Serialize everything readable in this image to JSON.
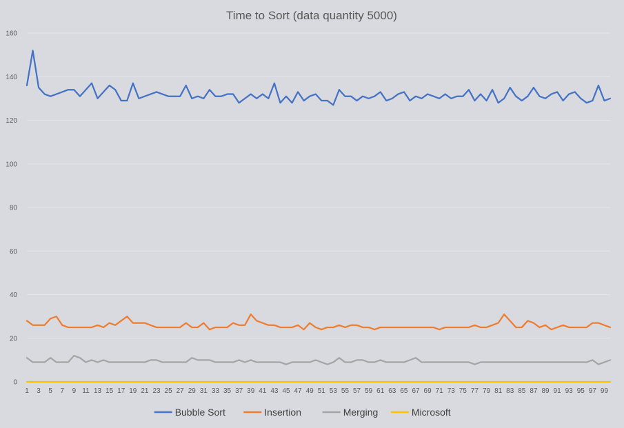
{
  "chart_data": {
    "type": "line",
    "title": "Time to Sort (data quantity 5000)",
    "xlabel": "",
    "ylabel": "",
    "ylim": [
      0,
      160
    ],
    "yticks": [
      0,
      20,
      40,
      60,
      80,
      100,
      120,
      140,
      160
    ],
    "x_tick_labels": [
      "1",
      "3",
      "5",
      "7",
      "9",
      "11",
      "13",
      "15",
      "17",
      "19",
      "21",
      "23",
      "25",
      "27",
      "29",
      "31",
      "33",
      "35",
      "37",
      "39",
      "41",
      "43",
      "45",
      "47",
      "49",
      "51",
      "53",
      "55",
      "57",
      "59",
      "61",
      "63",
      "65",
      "67",
      "69",
      "71",
      "73",
      "75",
      "77",
      "79",
      "81",
      "83",
      "85",
      "87",
      "89",
      "91",
      "93",
      "95",
      "97",
      "99"
    ],
    "x": [
      1,
      2,
      3,
      4,
      5,
      6,
      7,
      8,
      9,
      10,
      11,
      12,
      13,
      14,
      15,
      16,
      17,
      18,
      19,
      20,
      21,
      22,
      23,
      24,
      25,
      26,
      27,
      28,
      29,
      30,
      31,
      32,
      33,
      34,
      35,
      36,
      37,
      38,
      39,
      40,
      41,
      42,
      43,
      44,
      45,
      46,
      47,
      48,
      49,
      50,
      51,
      52,
      53,
      54,
      55,
      56,
      57,
      58,
      59,
      60,
      61,
      62,
      63,
      64,
      65,
      66,
      67,
      68,
      69,
      70,
      71,
      72,
      73,
      74,
      75,
      76,
      77,
      78,
      79,
      80,
      81,
      82,
      83,
      84,
      85,
      86,
      87,
      88,
      89,
      90,
      91,
      92,
      93,
      94,
      95,
      96,
      97,
      98,
      99,
      100
    ],
    "grid": true,
    "legend_position": "bottom",
    "series": [
      {
        "name": "Bubble Sort",
        "color": "#4472c4",
        "values": [
          136,
          152,
          135,
          132,
          131,
          132,
          133,
          134,
          134,
          131,
          134,
          137,
          130,
          133,
          136,
          134,
          129,
          129,
          137,
          130,
          131,
          132,
          133,
          132,
          131,
          131,
          131,
          136,
          130,
          131,
          130,
          134,
          131,
          131,
          132,
          132,
          128,
          130,
          132,
          130,
          132,
          130,
          137,
          128,
          131,
          128,
          133,
          129,
          131,
          132,
          129,
          129,
          127,
          134,
          131,
          131,
          129,
          131,
          130,
          131,
          133,
          129,
          130,
          132,
          133,
          129,
          131,
          130,
          132,
          131,
          130,
          132,
          130,
          131,
          131,
          134,
          129,
          132,
          129,
          134,
          128,
          130,
          135,
          131,
          129,
          131,
          135,
          131,
          130,
          132,
          133,
          129,
          132,
          133,
          130,
          128,
          129,
          136,
          129,
          130
        ]
      },
      {
        "name": "Insertion",
        "color": "#ed7d31",
        "values": [
          28,
          26,
          26,
          26,
          29,
          30,
          26,
          25,
          25,
          25,
          25,
          25,
          26,
          25,
          27,
          26,
          28,
          30,
          27,
          27,
          27,
          26,
          25,
          25,
          25,
          25,
          25,
          27,
          25,
          25,
          27,
          24,
          25,
          25,
          25,
          27,
          26,
          26,
          31,
          28,
          27,
          26,
          26,
          25,
          25,
          25,
          26,
          24,
          27,
          25,
          24,
          25,
          25,
          26,
          25,
          26,
          26,
          25,
          25,
          24,
          25,
          25,
          25,
          25,
          25,
          25,
          25,
          25,
          25,
          25,
          24,
          25,
          25,
          25,
          25,
          25,
          26,
          25,
          25,
          26,
          27,
          31,
          28,
          25,
          25,
          28,
          27,
          25,
          26,
          24,
          25,
          26,
          25,
          25,
          25,
          25,
          27,
          27,
          26,
          25
        ]
      },
      {
        "name": "Merging",
        "color": "#a5a5a5",
        "values": [
          11,
          9,
          9,
          9,
          11,
          9,
          9,
          9,
          12,
          11,
          9,
          10,
          9,
          10,
          9,
          9,
          9,
          9,
          9,
          9,
          9,
          10,
          10,
          9,
          9,
          9,
          9,
          9,
          11,
          10,
          10,
          10,
          9,
          9,
          9,
          9,
          10,
          9,
          10,
          9,
          9,
          9,
          9,
          9,
          8,
          9,
          9,
          9,
          9,
          10,
          9,
          8,
          9,
          11,
          9,
          9,
          10,
          10,
          9,
          9,
          10,
          9,
          9,
          9,
          9,
          10,
          11,
          9,
          9,
          9,
          9,
          9,
          9,
          9,
          9,
          9,
          8,
          9,
          9,
          9,
          9,
          9,
          9,
          9,
          9,
          9,
          9,
          9,
          9,
          9,
          9,
          9,
          9,
          9,
          9,
          9,
          10,
          8,
          9,
          10
        ]
      },
      {
        "name": "Microsoft",
        "color": "#ffc000",
        "values": [
          0,
          0,
          0,
          0,
          0,
          0,
          0,
          0,
          0,
          0,
          0,
          0,
          0,
          0,
          0,
          0,
          0,
          0,
          0,
          0,
          0,
          0,
          0,
          0,
          0,
          0,
          0,
          0,
          0,
          0,
          0,
          0,
          0,
          0,
          0,
          0,
          0,
          0,
          0,
          0,
          0,
          0,
          0,
          0,
          0,
          0,
          0,
          0,
          0,
          0,
          0,
          0,
          0,
          0,
          0,
          0,
          0,
          0,
          0,
          0,
          0,
          0,
          0,
          0,
          0,
          0,
          0,
          0,
          0,
          0,
          0,
          0,
          0,
          0,
          0,
          0,
          0,
          0,
          0,
          0,
          0,
          0,
          0,
          0,
          0,
          0,
          0,
          0,
          0,
          0,
          0,
          0,
          0,
          0,
          0,
          0,
          0,
          0,
          0,
          0
        ]
      }
    ]
  }
}
